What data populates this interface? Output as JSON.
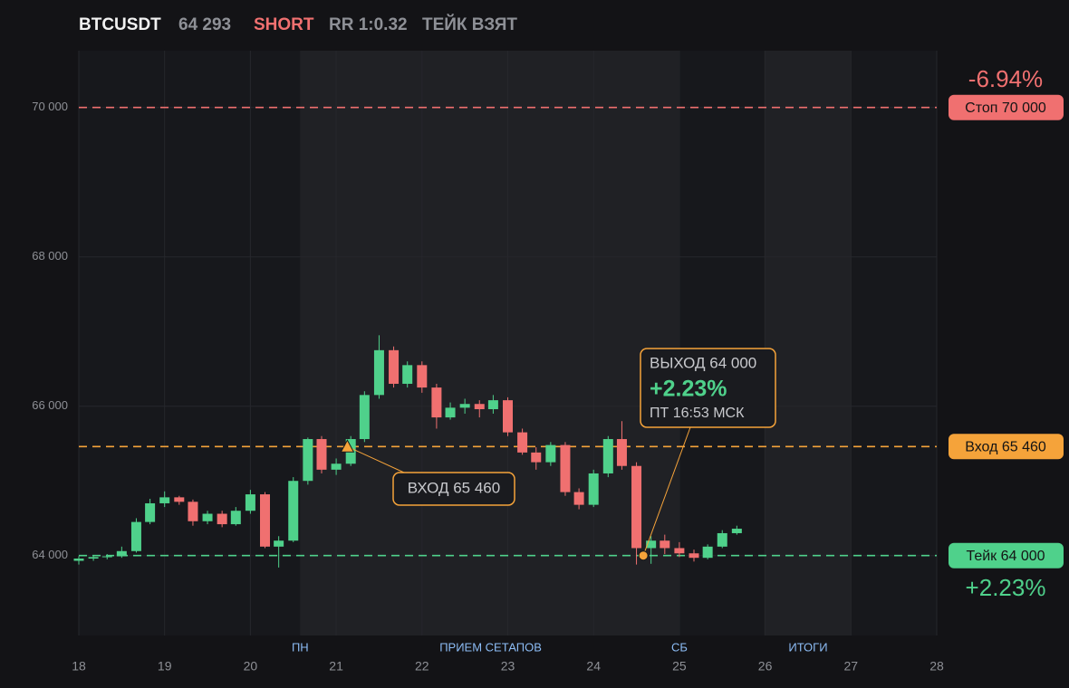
{
  "header": {
    "symbol": "BTCUSDT",
    "price": "64 293",
    "side": "SHORT",
    "rr": "RR 1:0.32",
    "status": "ТЕЙК ВЗЯТ"
  },
  "chart_data": {
    "type": "candlestick",
    "x": [
      18,
      18.17,
      18.33,
      18.5,
      18.67,
      18.83,
      19,
      19.17,
      19.33,
      19.5,
      19.67,
      19.83,
      20,
      20.17,
      20.33,
      20.5,
      20.67,
      20.83,
      21,
      21.17,
      21.33,
      21.5,
      21.67,
      21.83,
      22,
      22.17,
      22.33,
      22.5,
      22.67,
      22.83,
      23,
      23.17,
      23.33,
      23.5,
      23.67,
      23.83,
      24,
      24.17,
      24.33,
      24.5,
      24.67,
      24.83,
      25,
      25.17,
      25.33,
      25.5,
      25.67
    ],
    "open": [
      63930,
      63960,
      63980,
      63990,
      64060,
      64450,
      64700,
      64780,
      64720,
      64460,
      64560,
      64420,
      64600,
      64820,
      64120,
      64200,
      65000,
      65560,
      65150,
      65230,
      65560,
      66150,
      66750,
      66300,
      66550,
      66250,
      65850,
      65980,
      66030,
      65960,
      66080,
      65650,
      65380,
      65250,
      65480,
      64850,
      64680,
      65100,
      65560,
      65200,
      64100,
      64200,
      64100,
      64030,
      63970,
      64120,
      64300
    ],
    "high": [
      63990,
      64000,
      64020,
      64120,
      64500,
      64760,
      64860,
      64800,
      64750,
      64600,
      64600,
      64650,
      64880,
      64850,
      64260,
      65050,
      65580,
      65600,
      65300,
      65600,
      66200,
      66950,
      66800,
      66600,
      66600,
      66300,
      66050,
      66100,
      66080,
      66150,
      66120,
      65700,
      65450,
      65520,
      65520,
      64900,
      65150,
      65600,
      65800,
      65250,
      64260,
      64280,
      64180,
      64080,
      64150,
      64340,
      64400
    ],
    "low": [
      63880,
      63930,
      63950,
      63970,
      64040,
      64420,
      64650,
      64680,
      64400,
      64420,
      64380,
      64400,
      64560,
      64100,
      63840,
      64180,
      64950,
      65100,
      65080,
      65200,
      65520,
      66100,
      66250,
      66250,
      66180,
      65700,
      65820,
      65900,
      65850,
      65900,
      65600,
      65350,
      65150,
      65200,
      64800,
      64620,
      64650,
      65050,
      65150,
      63880,
      63890,
      64020,
      63980,
      63920,
      63950,
      64100,
      64280
    ],
    "close": [
      63960,
      63980,
      63990,
      64060,
      64450,
      64700,
      64780,
      64720,
      64460,
      64560,
      64420,
      64600,
      64820,
      64120,
      64200,
      65000,
      65560,
      65150,
      65230,
      65560,
      66150,
      66750,
      66300,
      66550,
      66250,
      65850,
      65980,
      66030,
      65960,
      66080,
      65650,
      65380,
      65250,
      65480,
      64850,
      64680,
      65100,
      65560,
      65200,
      64100,
      64200,
      64100,
      64030,
      63970,
      64120,
      64300,
      64360
    ],
    "up_color": "#4fd18b",
    "down_color": "#f07070",
    "xlim": [
      18,
      28
    ],
    "xticks": [
      18,
      19,
      20,
      21,
      22,
      23,
      24,
      25,
      26,
      27,
      28
    ],
    "ylim": [
      62930,
      70760
    ],
    "yticks": [
      {
        "value": 64000,
        "label": "64 000"
      },
      {
        "value": 66000,
        "label": "66 000"
      },
      {
        "value": 68000,
        "label": "68 000"
      },
      {
        "value": 70000,
        "label": "70 000"
      }
    ],
    "grid": true,
    "shaded": [
      [
        20.58,
        24.99
      ],
      [
        25.99,
        27
      ]
    ],
    "periods": [
      {
        "label": "ПН",
        "x": 20.58
      },
      {
        "label": "ПРИЕМ СЕТАПОВ",
        "x": 22.8
      },
      {
        "label": "СБ",
        "x": 25
      },
      {
        "label": "ИТОГИ",
        "x": 26.5
      }
    ],
    "levels": [
      {
        "label": "Стоп 70 000",
        "value": 70000,
        "color": "#f07070"
      },
      {
        "label": "Вход 65 460",
        "value": 65460,
        "color": "#f5a33a"
      },
      {
        "label": "Тейк 64 000",
        "value": 64000,
        "color": "#4fd18b"
      }
    ],
    "stop_pct": "-6.94%",
    "take_pct": "+2.23%",
    "entry_marker": {
      "x": 21.13,
      "y": 65460,
      "label": "ВХОД 65 460"
    },
    "exit_marker": {
      "x": 24.58,
      "y": 64000,
      "title": "ВЫХОД 64 000",
      "pct": "+2.23%",
      "time": "ПТ 16:53 МСК"
    }
  }
}
